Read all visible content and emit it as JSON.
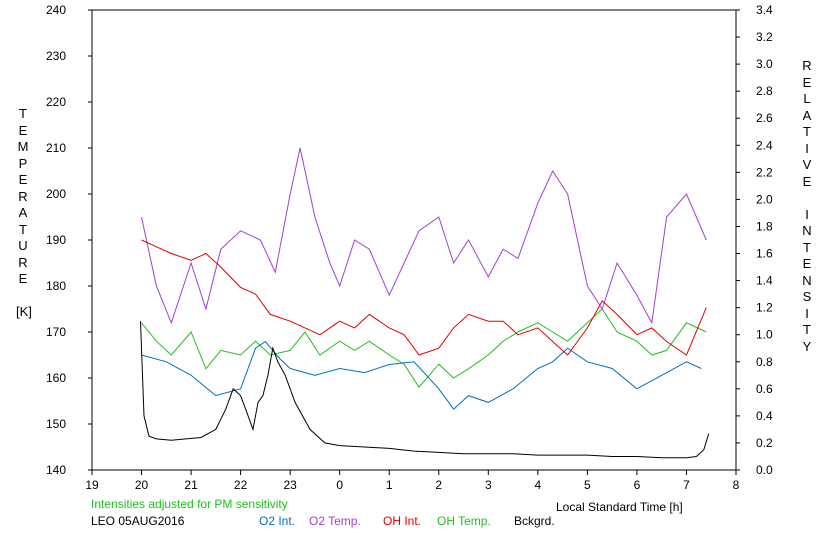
{
  "chart_data": {
    "type": "line",
    "title": "",
    "xlabel": "Local Standard Time [h]",
    "ylabel": "TEMPERATURE [K]",
    "y2label": "RELATIVE INTENSITY",
    "xlim": [
      19,
      8
    ],
    "x_ticks": [
      "19",
      "20",
      "21",
      "22",
      "23",
      "0",
      "1",
      "2",
      "3",
      "4",
      "5",
      "6",
      "7",
      "8"
    ],
    "ylim": [
      140,
      240
    ],
    "y_ticks": [
      140,
      150,
      160,
      170,
      180,
      190,
      200,
      210,
      220,
      230,
      240
    ],
    "y2lim": [
      0.0,
      3.4
    ],
    "y2_ticks": [
      "0.0",
      "0.2",
      "0.4",
      "0.6",
      "0.8",
      "1.0",
      "1.2",
      "1.4",
      "1.6",
      "1.8",
      "2.0",
      "2.2",
      "2.4",
      "2.6",
      "2.8",
      "3.0",
      "3.2",
      "3.4"
    ],
    "grid": false,
    "note": "Intensities adjusted for PM sensitivity",
    "station_label": "LEO 05AUG2016",
    "series": [
      {
        "name": "O2 Int.",
        "color": "#0070c0",
        "axis": "right",
        "x": [
          20.0,
          20.5,
          21.0,
          21.5,
          22.0,
          22.3,
          22.5,
          22.8,
          23.0,
          23.5,
          0.0,
          0.5,
          1.0,
          1.5,
          2.0,
          2.3,
          2.6,
          3.0,
          3.5,
          4.0,
          4.3,
          4.6,
          5.0,
          5.5,
          6.0,
          6.5,
          7.0,
          7.3
        ],
        "values": [
          0.85,
          0.8,
          0.7,
          0.55,
          0.6,
          0.9,
          0.95,
          0.82,
          0.75,
          0.7,
          0.75,
          0.72,
          0.78,
          0.8,
          0.6,
          0.45,
          0.55,
          0.5,
          0.6,
          0.75,
          0.8,
          0.9,
          0.8,
          0.75,
          0.6,
          0.7,
          0.8,
          0.75
        ]
      },
      {
        "name": "O2 Temp.",
        "color": "#a040d0",
        "axis": "left",
        "x": [
          20.0,
          20.3,
          20.6,
          21.0,
          21.3,
          21.6,
          22.0,
          22.4,
          22.7,
          23.0,
          23.2,
          23.5,
          23.8,
          0.0,
          0.3,
          0.6,
          1.0,
          1.3,
          1.6,
          2.0,
          2.3,
          2.6,
          3.0,
          3.3,
          3.6,
          4.0,
          4.3,
          4.6,
          5.0,
          5.3,
          5.6,
          6.0,
          6.3,
          6.6,
          7.0,
          7.4
        ],
        "values": [
          195,
          180,
          172,
          185,
          175,
          188,
          192,
          190,
          183,
          200,
          210,
          195,
          185,
          180,
          190,
          188,
          178,
          185,
          192,
          195,
          185,
          190,
          182,
          188,
          186,
          198,
          205,
          200,
          180,
          175,
          185,
          178,
          172,
          195,
          200,
          190
        ]
      },
      {
        "name": "OH Int.",
        "color": "#e00000",
        "axis": "right",
        "x": [
          20.0,
          20.3,
          20.6,
          21.0,
          21.3,
          21.6,
          22.0,
          22.3,
          22.6,
          23.0,
          23.3,
          23.6,
          0.0,
          0.3,
          0.6,
          1.0,
          1.3,
          1.6,
          2.0,
          2.3,
          2.6,
          3.0,
          3.3,
          3.6,
          4.0,
          4.3,
          4.6,
          5.0,
          5.3,
          5.6,
          6.0,
          6.3,
          6.6,
          7.0,
          7.4
        ],
        "values": [
          1.7,
          1.65,
          1.6,
          1.55,
          1.6,
          1.5,
          1.35,
          1.3,
          1.15,
          1.1,
          1.05,
          1.0,
          1.1,
          1.05,
          1.15,
          1.05,
          1.0,
          0.85,
          0.9,
          1.05,
          1.15,
          1.1,
          1.1,
          1.0,
          1.05,
          0.95,
          0.85,
          1.05,
          1.25,
          1.15,
          1.0,
          1.05,
          0.95,
          0.85,
          1.2
        ]
      },
      {
        "name": "OH Temp.",
        "color": "#20c020",
        "axis": "left",
        "x": [
          20.0,
          20.3,
          20.6,
          21.0,
          21.3,
          21.6,
          22.0,
          22.3,
          22.6,
          23.0,
          23.3,
          23.6,
          0.0,
          0.3,
          0.6,
          1.0,
          1.3,
          1.6,
          2.0,
          2.3,
          2.6,
          3.0,
          3.3,
          3.6,
          4.0,
          4.3,
          4.6,
          5.0,
          5.3,
          5.6,
          6.0,
          6.3,
          6.6,
          7.0,
          7.4
        ],
        "values": [
          172,
          168,
          165,
          170,
          162,
          166,
          165,
          168,
          165,
          166,
          170,
          165,
          168,
          166,
          168,
          165,
          163,
          158,
          163,
          160,
          162,
          165,
          168,
          170,
          172,
          170,
          168,
          172,
          175,
          170,
          168,
          165,
          166,
          172,
          170
        ]
      },
      {
        "name": "Bckgrd.",
        "color": "#000000",
        "axis": "right",
        "x": [
          19.98,
          20.05,
          20.15,
          20.3,
          20.6,
          20.9,
          21.2,
          21.5,
          21.7,
          21.85,
          22.0,
          22.1,
          22.25,
          22.35,
          22.45,
          22.55,
          22.65,
          22.75,
          22.9,
          23.1,
          23.4,
          23.7,
          0.0,
          0.5,
          1.0,
          1.5,
          2.0,
          2.5,
          3.0,
          3.5,
          4.0,
          4.5,
          5.0,
          5.5,
          6.0,
          6.5,
          7.0,
          7.2,
          7.35,
          7.45
        ],
        "values": [
          1.1,
          0.4,
          0.25,
          0.23,
          0.22,
          0.23,
          0.24,
          0.3,
          0.45,
          0.6,
          0.55,
          0.45,
          0.3,
          0.5,
          0.55,
          0.7,
          0.9,
          0.8,
          0.7,
          0.5,
          0.3,
          0.2,
          0.18,
          0.17,
          0.16,
          0.14,
          0.13,
          0.12,
          0.12,
          0.12,
          0.11,
          0.11,
          0.11,
          0.1,
          0.1,
          0.09,
          0.09,
          0.1,
          0.15,
          0.27
        ]
      }
    ]
  }
}
